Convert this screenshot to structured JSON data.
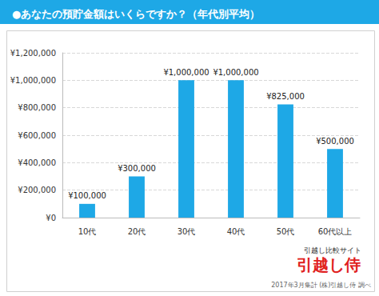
{
  "chart_data": {
    "type": "bar",
    "title": "●あなたの預貯金額はいくらですか？（年代別平均）",
    "categories": [
      "10代",
      "20代",
      "30代",
      "40代",
      "50代",
      "60代以上"
    ],
    "values": [
      100000,
      300000,
      1000000,
      1000000,
      825000,
      500000
    ],
    "value_labels": [
      "¥100,000",
      "¥300,000",
      "¥1,000,000",
      "¥1,000,000",
      "¥825,000",
      "¥500,000"
    ],
    "data_labels": true,
    "color": "#1ea8e6",
    "ylim": [
      0,
      1200000
    ],
    "yticks": [
      {
        "value": 0,
        "label": "¥0"
      },
      {
        "value": 200000,
        "label": "¥200,000"
      },
      {
        "value": 400000,
        "label": "¥400,000"
      },
      {
        "value": 600000,
        "label": "¥600,000"
      },
      {
        "value": 800000,
        "label": "¥800,000"
      },
      {
        "value": 1000000,
        "label": "¥1,000,000"
      },
      {
        "value": 1200000,
        "label": "¥1,200,000"
      }
    ],
    "grid": true,
    "annotations": [
      "引越し比較サイト",
      "引越し侍",
      "2017年3月集計 (株)引越し侍 調べ"
    ]
  }
}
